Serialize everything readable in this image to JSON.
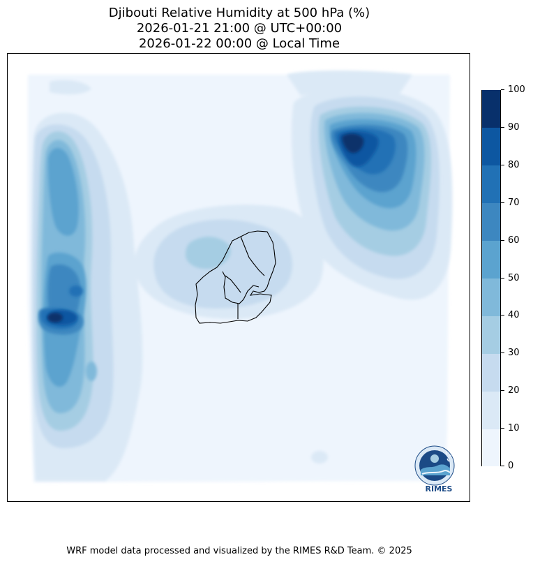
{
  "title": {
    "line1": "Djibouti Relative Humidity at 500 hPa (%)",
    "line2": "2026-01-21 21:00 @ UTC+00:00",
    "line3": "2026-01-22 00:00 @ Local Time"
  },
  "colorbar": {
    "ticks": [
      "0",
      "10",
      "20",
      "30",
      "40",
      "50",
      "60",
      "70",
      "80",
      "90",
      "100"
    ],
    "levels": [
      0,
      10,
      20,
      30,
      40,
      50,
      60,
      70,
      80,
      90,
      100
    ],
    "colors": [
      "#eef5fd",
      "#dbe9f6",
      "#c6dbef",
      "#a5cde3",
      "#80b9da",
      "#5ba3cf",
      "#3d87c0",
      "#2171b5",
      "#0d57a1",
      "#08306b"
    ]
  },
  "logo": {
    "text": "RIMES"
  },
  "footer": "WRF model data processed and visualized by the RIMES R&D Team. © 2025"
}
